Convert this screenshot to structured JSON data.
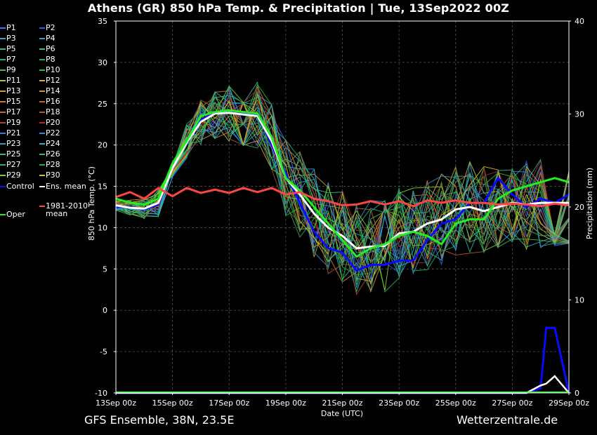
{
  "title": "Athens  (GR)  850 hPa Temp. & Precipitation | Tue, 13Sep2022 00Z",
  "footer": {
    "left": "GFS Ensemble, 38N, 23.5E",
    "right": "Wetterzentrale.de"
  },
  "chart_data": {
    "type": "line",
    "xlabel": "Date (UTC)",
    "ylabel": "850 hPa Temp. (°C)",
    "y2label": "Precipitation (mm)",
    "ylim": [
      -10,
      35
    ],
    "y2lim": [
      0,
      40
    ],
    "xlim_days": [
      0,
      16
    ],
    "yticks": [
      -10,
      -5,
      0,
      5,
      10,
      15,
      20,
      25,
      30,
      35
    ],
    "y2ticks": [
      0,
      10,
      20,
      30,
      40
    ],
    "xticks": [
      "13Sep 00z",
      "15Sep 00z",
      "17Sep 00z",
      "19Sep 00z",
      "21Sep 00z",
      "23Sep 00z",
      "25Sep 00z",
      "27Sep 00z",
      "29Sep 00z"
    ],
    "grid": true,
    "legend_position": "left",
    "legend": [
      {
        "label": "P1",
        "color": "#4a6cff"
      },
      {
        "label": "P2",
        "color": "#2f5cff"
      },
      {
        "label": "P3",
        "color": "#35a0d8"
      },
      {
        "label": "P4",
        "color": "#2e9ed6"
      },
      {
        "label": "P5",
        "color": "#2bb7a3"
      },
      {
        "label": "P6",
        "color": "#2ec18d"
      },
      {
        "label": "P7",
        "color": "#21b070"
      },
      {
        "label": "P8",
        "color": "#27b05a"
      },
      {
        "label": "P9",
        "color": "#3cc234"
      },
      {
        "label": "P10",
        "color": "#22c222"
      },
      {
        "label": "P11",
        "color": "#b6c230"
      },
      {
        "label": "P12",
        "color": "#c9b13a"
      },
      {
        "label": "P13",
        "color": "#c8a02a"
      },
      {
        "label": "P14",
        "color": "#d4962a"
      },
      {
        "label": "P15",
        "color": "#c87a3a"
      },
      {
        "label": "P16",
        "color": "#b86a3a"
      },
      {
        "label": "P17",
        "color": "#c0703a"
      },
      {
        "label": "P18",
        "color": "#b05a2a"
      },
      {
        "label": "P19",
        "color": "#a84a2a"
      },
      {
        "label": "P20",
        "color": "#b02a2a"
      },
      {
        "label": "P21",
        "color": "#3a7cd8"
      },
      {
        "label": "P22",
        "color": "#2f8cd8"
      },
      {
        "label": "P23",
        "color": "#2b9ac8"
      },
      {
        "label": "P24",
        "color": "#2ab0c0"
      },
      {
        "label": "P25",
        "color": "#2bb89a"
      },
      {
        "label": "P26",
        "color": "#2bc07a"
      },
      {
        "label": "P27",
        "color": "#2ab060"
      },
      {
        "label": "P28",
        "color": "#2aa84a"
      },
      {
        "label": "P29",
        "color": "#7ad020"
      },
      {
        "label": "P30",
        "color": "#d4c020"
      },
      {
        "label": "Control",
        "color": "#0a0aff"
      },
      {
        "label": "Ens. mean",
        "color": "#ffffff"
      },
      {
        "label": "1981-2010\nmean",
        "color": "#ff4444"
      },
      {
        "label": "Oper",
        "color": "#22ee22"
      }
    ],
    "series": [
      {
        "name": "Control",
        "color": "#0a0aff",
        "width": 3,
        "x": [
          0,
          0.5,
          1,
          1.5,
          2,
          2.5,
          3,
          3.5,
          4,
          4.5,
          5,
          5.5,
          6,
          6.5,
          7,
          7.5,
          8,
          8.5,
          9,
          9.5,
          10,
          10.5,
          11,
          11.5,
          12,
          12.5,
          13,
          13.5,
          14,
          14.5,
          15,
          15.5,
          16
        ],
        "y": [
          12.5,
          12.5,
          12.2,
          12.8,
          17.5,
          20.5,
          23,
          24,
          24,
          23.8,
          23.8,
          20,
          16.5,
          13,
          9.5,
          7.5,
          7,
          4.8,
          5.5,
          5.5,
          6,
          6,
          8.5,
          10.5,
          11,
          13,
          13,
          16,
          14,
          12.5,
          13.5,
          13,
          14
        ]
      },
      {
        "name": "Ens. mean",
        "color": "#ffffff",
        "width": 3,
        "x": [
          0,
          0.5,
          1,
          1.5,
          2,
          2.5,
          3,
          3.5,
          4,
          4.5,
          5,
          5.5,
          6,
          6.5,
          7,
          7.5,
          8,
          8.5,
          9,
          9.5,
          10,
          10.5,
          11,
          11.5,
          12,
          12.5,
          13,
          13.5,
          14,
          14.5,
          15,
          15.5,
          16
        ],
        "y": [
          12.7,
          12.4,
          12.3,
          13,
          17.2,
          20.3,
          22.8,
          23.8,
          23.9,
          23.7,
          23.5,
          20.5,
          16,
          14,
          11.7,
          10,
          9,
          7.5,
          7.7,
          7.8,
          9.3,
          9.5,
          10.5,
          11,
          12.2,
          12.5,
          12,
          12.5,
          13,
          12.8,
          13,
          13,
          13
        ]
      },
      {
        "name": "Oper",
        "color": "#22ee22",
        "width": 3,
        "x": [
          0,
          0.5,
          1,
          1.5,
          2,
          2.5,
          3,
          3.5,
          4,
          4.5,
          5,
          5.5,
          6,
          6.5,
          7,
          7.5,
          8,
          8.5,
          9,
          9.5,
          10,
          10.5,
          11,
          11.5,
          12,
          12.5,
          13,
          13.5,
          14,
          14.5,
          15,
          15.5,
          16
        ],
        "y": [
          13.5,
          13,
          12.8,
          13.5,
          17.8,
          20.5,
          23.5,
          24,
          24.2,
          24,
          23.8,
          21,
          16,
          14.5,
          12.5,
          10.5,
          8.5,
          6.5,
          7.5,
          8,
          9,
          9.5,
          9,
          8,
          10.5,
          11,
          11,
          13.5,
          14.5,
          15,
          15.5,
          16,
          15.5
        ]
      },
      {
        "name": "1981-2010 mean",
        "color": "#ff4444",
        "width": 3,
        "x": [
          0,
          0.5,
          1,
          1.5,
          2,
          2.5,
          3,
          3.5,
          4,
          4.5,
          5,
          5.5,
          6,
          6.5,
          7,
          7.5,
          8,
          8.5,
          9,
          9.5,
          10,
          10.5,
          11,
          11.5,
          12,
          12.5,
          13,
          13.5,
          14,
          14.5,
          15,
          15.5,
          16
        ],
        "y": [
          13.7,
          14.3,
          13.5,
          14.8,
          13.8,
          14.8,
          14.2,
          14.6,
          14.2,
          14.8,
          14.3,
          14.8,
          14,
          14.3,
          13.5,
          13.2,
          12.7,
          12.8,
          13.2,
          12.8,
          13.2,
          12.6,
          13.3,
          13,
          13.3,
          13,
          13,
          12.8,
          12.9,
          12.8,
          12.6,
          12.9,
          12.7
        ]
      }
    ],
    "precipitation": {
      "x": [
        0,
        13,
        13.5,
        14,
        14.5,
        15,
        15.2,
        15.5,
        16
      ],
      "control": [
        0,
        0,
        0,
        0,
        0,
        0.5,
        7,
        7,
        0
      ],
      "mean": [
        0,
        0,
        0,
        0,
        0,
        0.8,
        1,
        1.8,
        0
      ]
    }
  }
}
